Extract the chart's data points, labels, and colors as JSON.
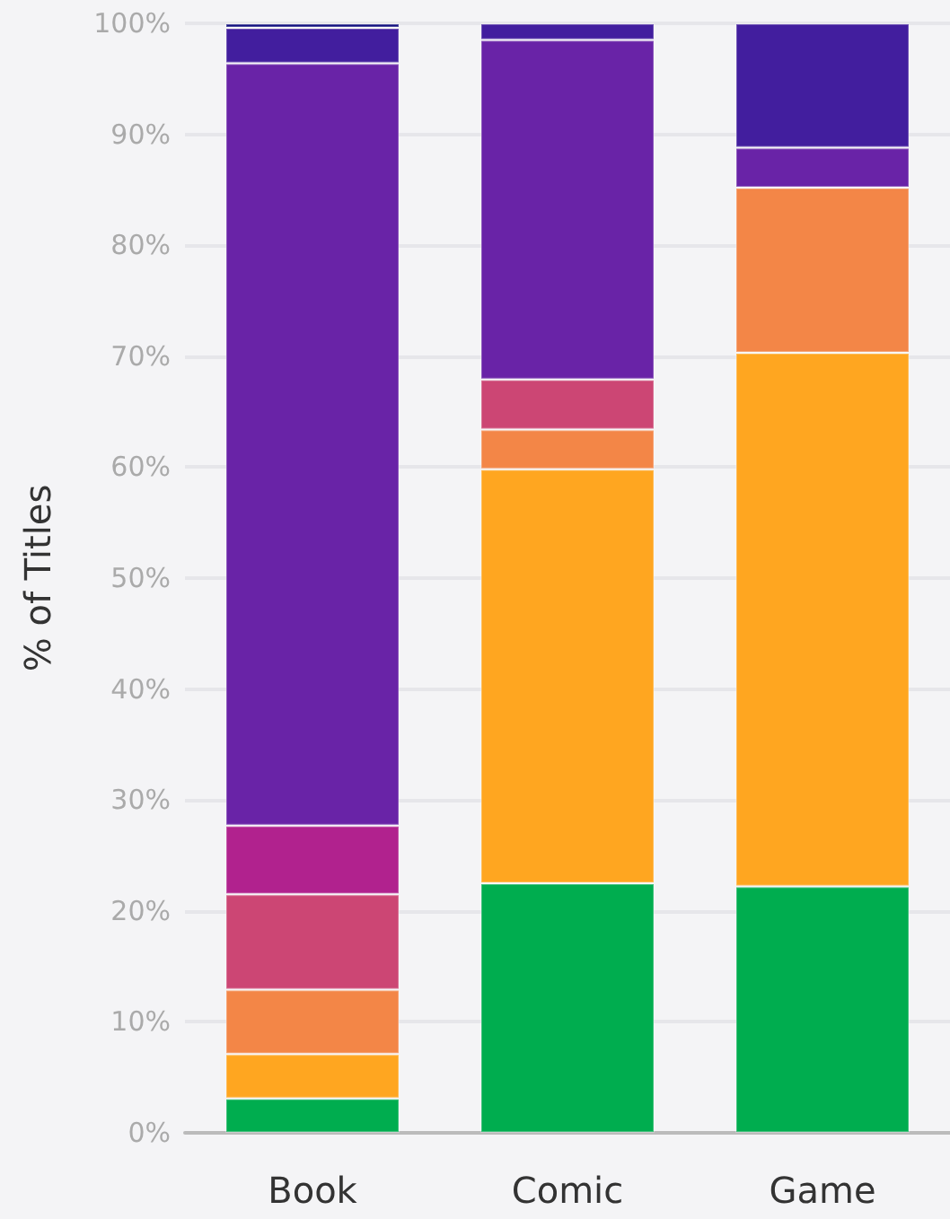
{
  "chart_data": {
    "type": "bar",
    "stacked": true,
    "ylabel": "% of Titles",
    "categories": [
      "Book",
      "Comic",
      "Game"
    ],
    "series": [
      {
        "color": "#00ad4f",
        "values": [
          3.1,
          22.5,
          22.2
        ]
      },
      {
        "color": "#ffa620",
        "values": [
          4.0,
          37.3,
          48.1
        ]
      },
      {
        "color": "#f38647",
        "values": [
          5.8,
          3.6,
          14.9
        ]
      },
      {
        "color": "#cc4674",
        "values": [
          8.6,
          4.5,
          null
        ]
      },
      {
        "color": "#b1228e",
        "values": [
          6.2,
          null,
          null
        ]
      },
      {
        "color": "#6923a7",
        "values": [
          68.7,
          30.6,
          3.6
        ]
      },
      {
        "color": "#421e9e",
        "values": [
          3.2,
          1.5,
          11.2
        ]
      },
      {
        "color": "#13117f",
        "values": [
          0.4,
          null,
          null
        ]
      }
    ],
    "ylim": [
      0,
      100
    ],
    "yticks": [
      {
        "value": 0,
        "label": "0%"
      },
      {
        "value": 10,
        "label": "10%"
      },
      {
        "value": 20,
        "label": "20%"
      },
      {
        "value": 30,
        "label": "30%"
      },
      {
        "value": 40,
        "label": "40%"
      },
      {
        "value": 50,
        "label": "50%"
      },
      {
        "value": 60,
        "label": "60%"
      },
      {
        "value": 70,
        "label": "70%"
      },
      {
        "value": 80,
        "label": "80%"
      },
      {
        "value": 90,
        "label": "90%"
      },
      {
        "value": 100,
        "label": "100%"
      }
    ],
    "grid": "y"
  }
}
